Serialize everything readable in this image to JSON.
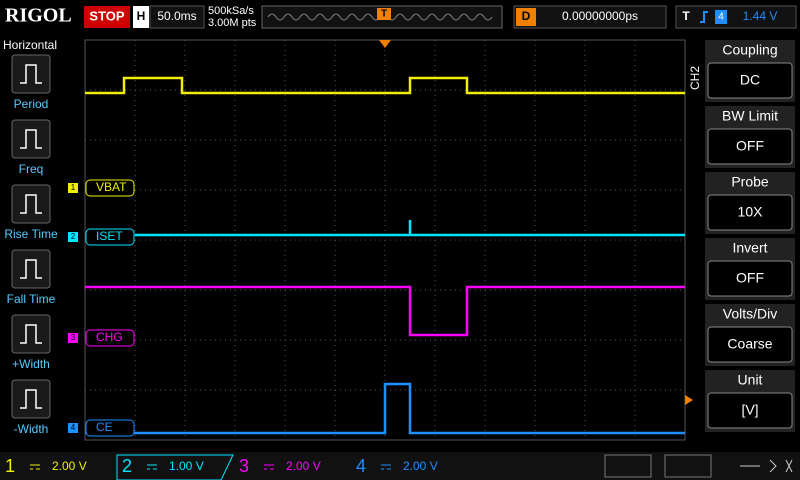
{
  "top_bar": {
    "brand": "RIGOL",
    "status": "STOP",
    "horizontal_label": "H",
    "timebase": "50.0ms",
    "sample_rate": "500kSa/s",
    "memory_depth": "3.00M pts",
    "trigger_marker": "T",
    "delay_label": "D",
    "delay": "0.00000000ps",
    "trigger_label": "T",
    "trigger_source": "4",
    "trigger_level": "1.44 V"
  },
  "left_menu": {
    "title": "Horizontal",
    "items": [
      "Period",
      "Freq",
      "Rise Time",
      "Fall Time",
      "+Width",
      "-Width"
    ]
  },
  "right_menu": {
    "channel": "CH2",
    "items": [
      {
        "title": "Coupling",
        "value": "DC"
      },
      {
        "title": "BW Limit",
        "value": "OFF"
      },
      {
        "title": "Probe",
        "value": "10X"
      },
      {
        "title": "Invert",
        "value": "OFF"
      },
      {
        "title": "Volts/Div",
        "value": "Coarse"
      },
      {
        "title": "Unit",
        "value": "[V]"
      }
    ]
  },
  "channels": [
    {
      "number": "1",
      "label": "VBAT",
      "scale": "2.00 V",
      "color": "#f0f000"
    },
    {
      "number": "2",
      "label": "ISET",
      "scale": "1.00 V",
      "color": "#00e5ff"
    },
    {
      "number": "3",
      "label": "CHG",
      "scale": "2.00 V",
      "color": "#ff00ff"
    },
    {
      "number": "4",
      "label": "CE",
      "scale": "2.00 V",
      "color": "#1e8fff"
    }
  ]
}
